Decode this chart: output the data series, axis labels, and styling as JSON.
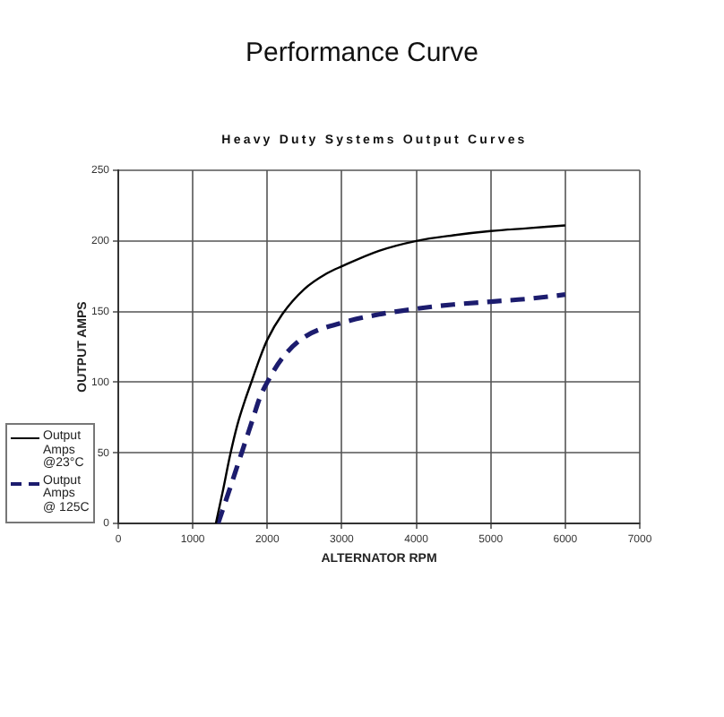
{
  "chart_data": {
    "type": "line",
    "title": "Performance Curve",
    "subtitle": "Heavy Duty Systems Output Curves",
    "xlabel": "ALTERNATOR RPM",
    "ylabel": "OUTPUT AMPS",
    "series": [
      {
        "name": "Output Amps @23°C",
        "color": "#000000",
        "line_style": "solid",
        "x": [
          1310,
          1400,
          1500,
          1600,
          1700,
          1800,
          1900,
          2000,
          2200,
          2500,
          2800,
          3000,
          3500,
          4000,
          4500,
          5000,
          5500,
          6000
        ],
        "values": [
          0,
          22,
          48,
          70,
          87,
          102,
          117,
          130,
          148,
          166,
          177,
          182,
          193,
          200,
          204,
          207,
          209,
          211
        ]
      },
      {
        "name": "Output Amps @ 125C",
        "color": "#1c1c6e",
        "line_style": "dashed",
        "x": [
          1340,
          1500,
          1600,
          1700,
          1800,
          1900,
          2000,
          2200,
          2500,
          3000,
          3500,
          4000,
          4500,
          5000,
          5500,
          6000
        ],
        "values": [
          0,
          25,
          41,
          57,
          73,
          89,
          100,
          117,
          132,
          142,
          148,
          152,
          155,
          157,
          159,
          162
        ]
      }
    ],
    "xlim": [
      0,
      7000
    ],
    "xticks": [
      0,
      1000,
      2000,
      3000,
      4000,
      5000,
      6000,
      7000
    ],
    "ylim": [
      0,
      250
    ],
    "yticks": [
      0,
      50,
      100,
      150,
      200,
      250
    ],
    "grid": true,
    "legend": "left"
  }
}
